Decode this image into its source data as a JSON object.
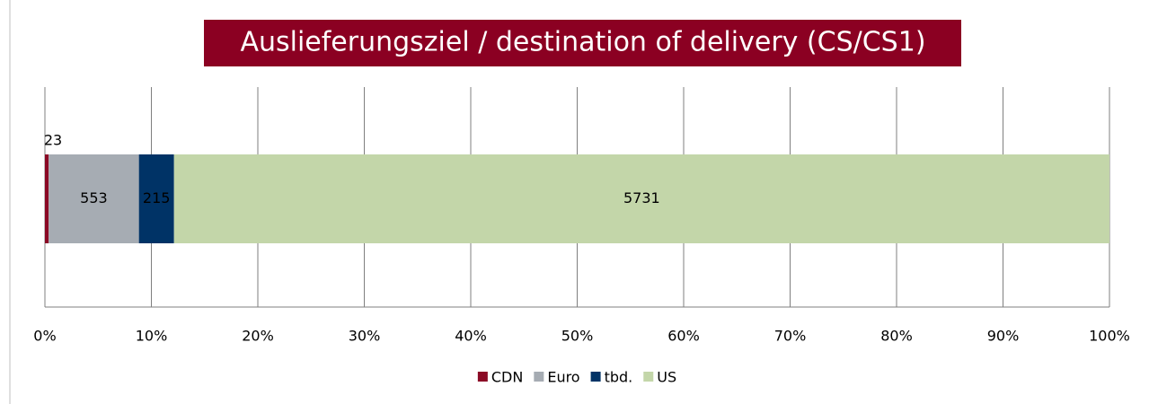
{
  "chart_data": {
    "type": "bar",
    "orientation": "horizontal",
    "stacking": "percent",
    "title": "Auslieferungsziel / destination of delivery (CS/CS1)",
    "series": [
      {
        "name": "CDN",
        "color": "#8b0a25",
        "values": [
          23
        ]
      },
      {
        "name": "Euro",
        "color": "#a6acb3",
        "values": [
          553
        ]
      },
      {
        "name": "tbd.",
        "color": "#003366",
        "values": [
          215
        ]
      },
      {
        "name": "US",
        "color": "#c3d6a9",
        "values": [
          5731
        ]
      }
    ],
    "xlim": [
      0,
      100
    ],
    "xticks": [
      {
        "value": 0,
        "label": "0%"
      },
      {
        "value": 10,
        "label": "10%"
      },
      {
        "value": 20,
        "label": "20%"
      },
      {
        "value": 30,
        "label": "30%"
      },
      {
        "value": 40,
        "label": "40%"
      },
      {
        "value": 50,
        "label": "50%"
      },
      {
        "value": 60,
        "label": "60%"
      },
      {
        "value": 70,
        "label": "70%"
      },
      {
        "value": 80,
        "label": "80%"
      },
      {
        "value": 90,
        "label": "90%"
      },
      {
        "value": 100,
        "label": "100%"
      }
    ],
    "grid": true,
    "legend": "bottom",
    "title_background": "#8b0022"
  }
}
